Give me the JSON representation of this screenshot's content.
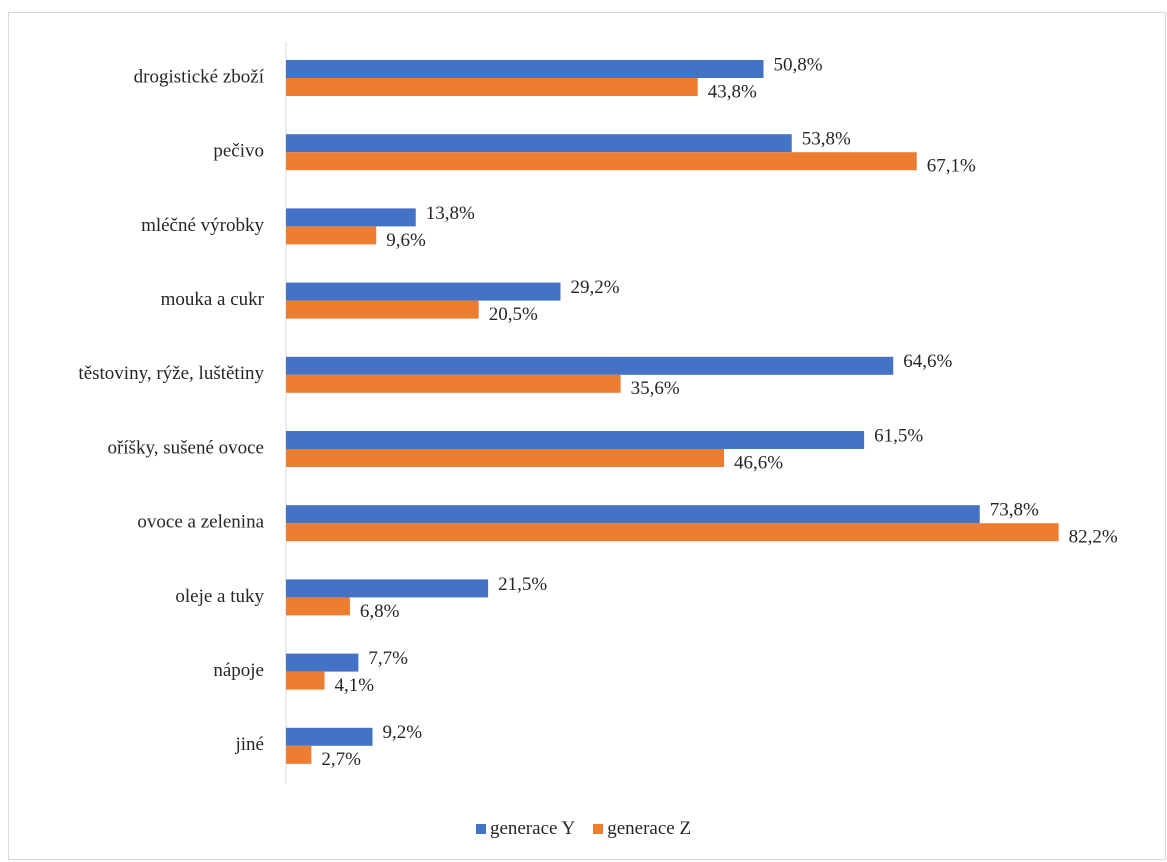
{
  "chart_data": {
    "type": "bar",
    "orientation": "horizontal",
    "categories": [
      "drogistické zboží",
      "pečivo",
      "mléčné výrobky",
      "mouka a cukr",
      "těstoviny, rýže, luštětiny",
      "oříšky, sušené ovoce",
      "ovoce a zelenina",
      "oleje a tuky",
      "nápoje",
      "jiné"
    ],
    "series": [
      {
        "name": "generace Y",
        "color": "#4472c4",
        "values": [
          50.8,
          53.8,
          13.8,
          29.2,
          64.6,
          61.5,
          73.8,
          21.5,
          7.7,
          9.2
        ],
        "labels": [
          "50,8%",
          "53,8%",
          "13,8%",
          "29,2%",
          "64,6%",
          "61,5%",
          "73,8%",
          "21,5%",
          "7,7%",
          "9,2%"
        ]
      },
      {
        "name": "generace Z",
        "color": "#ed7d31",
        "values": [
          43.8,
          67.1,
          9.6,
          20.5,
          35.6,
          46.6,
          82.2,
          6.8,
          4.1,
          2.7
        ],
        "labels": [
          "43,8%",
          "67,1%",
          "9,6%",
          "20,5%",
          "35,6%",
          "46,6%",
          "82,2%",
          "6,8%",
          "4,1%",
          "2,7%"
        ]
      }
    ],
    "legend_position": "bottom",
    "grid": false,
    "value_axis_visible": false
  }
}
